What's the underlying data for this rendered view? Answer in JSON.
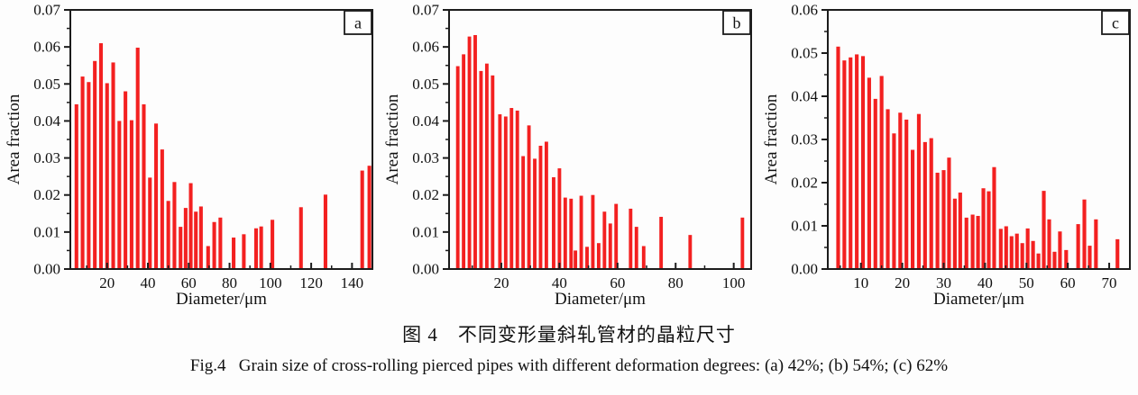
{
  "figure": {
    "caption_cn": "图 4　不同变形量斜轧管材的晶粒尺寸",
    "caption_en": "Fig.4   Grain size of cross-rolling pierced pipes with different deformation degrees: (a) 42%; (b) 54%; (c) 62%"
  },
  "colors": {
    "bar": "#f32020",
    "axis": "#1c1c1c",
    "text": "#111111",
    "panel_box_fill": "#ffffff"
  },
  "chart_data": [
    {
      "type": "bar",
      "panel": "a",
      "xlabel": "Diameter/μm",
      "ylabel": "Area fraction",
      "xlim": [
        2,
        150
      ],
      "ylim": [
        0,
        0.07
      ],
      "xticks": [
        20,
        40,
        60,
        80,
        100,
        120,
        140
      ],
      "yticks": [
        0.0,
        0.01,
        0.02,
        0.03,
        0.04,
        0.05,
        0.06,
        0.07
      ],
      "x_minor_step": 10,
      "y_major_step": 0.01,
      "y_minor_step": 0.005,
      "grid": false,
      "bar_width": 1.8,
      "bars": [
        [
          5,
          0.0445
        ],
        [
          8,
          0.052
        ],
        [
          11,
          0.0505
        ],
        [
          14,
          0.0562
        ],
        [
          17,
          0.061
        ],
        [
          20,
          0.0502
        ],
        [
          23,
          0.0558
        ],
        [
          26,
          0.04
        ],
        [
          29,
          0.048
        ],
        [
          32,
          0.0402
        ],
        [
          35,
          0.0598
        ],
        [
          38,
          0.0445
        ],
        [
          41,
          0.0247
        ],
        [
          44,
          0.0393
        ],
        [
          47,
          0.0323
        ],
        [
          50,
          0.0184
        ],
        [
          53,
          0.0235
        ],
        [
          56,
          0.0114
        ],
        [
          58.5,
          0.0165
        ],
        [
          61,
          0.0232
        ],
        [
          63.5,
          0.0155
        ],
        [
          66,
          0.0169
        ],
        [
          69.5,
          0.0062
        ],
        [
          72.5,
          0.0127
        ],
        [
          75.5,
          0.0139
        ],
        [
          82,
          0.0085
        ],
        [
          87,
          0.0094
        ],
        [
          93,
          0.011
        ],
        [
          95.5,
          0.0115
        ],
        [
          101,
          0.0133
        ],
        [
          115,
          0.0167
        ],
        [
          127,
          0.0201
        ],
        [
          145,
          0.0266
        ],
        [
          148.5,
          0.0279
        ]
      ]
    },
    {
      "type": "bar",
      "panel": "b",
      "xlabel": "Diameter/μm",
      "ylabel": "Area fraction",
      "xlim": [
        2,
        106
      ],
      "ylim": [
        0,
        0.07
      ],
      "xticks": [
        20,
        40,
        60,
        80,
        100
      ],
      "yticks": [
        0.0,
        0.01,
        0.02,
        0.03,
        0.04,
        0.05,
        0.06,
        0.07
      ],
      "x_minor_step": 10,
      "y_major_step": 0.01,
      "y_minor_step": 0.005,
      "grid": false,
      "bar_width": 1.2,
      "bars": [
        [
          5,
          0.0548
        ],
        [
          7,
          0.058
        ],
        [
          9,
          0.0628
        ],
        [
          11,
          0.0632
        ],
        [
          13,
          0.0535
        ],
        [
          15,
          0.0555
        ],
        [
          17,
          0.0523
        ],
        [
          19.5,
          0.0418
        ],
        [
          21.5,
          0.0412
        ],
        [
          23.5,
          0.0435
        ],
        [
          25.5,
          0.0428
        ],
        [
          27.5,
          0.0305
        ],
        [
          29.5,
          0.0388
        ],
        [
          31.5,
          0.0298
        ],
        [
          33.5,
          0.0333
        ],
        [
          35.5,
          0.0344
        ],
        [
          38,
          0.0248
        ],
        [
          40,
          0.0272
        ],
        [
          42,
          0.0193
        ],
        [
          44,
          0.019
        ],
        [
          45.5,
          0.005
        ],
        [
          47.5,
          0.0198
        ],
        [
          49.5,
          0.006
        ],
        [
          51.5,
          0.02
        ],
        [
          53.5,
          0.007
        ],
        [
          55.5,
          0.0155
        ],
        [
          57.5,
          0.0123
        ],
        [
          59.5,
          0.0176
        ],
        [
          64.5,
          0.0163
        ],
        [
          66.5,
          0.0114
        ],
        [
          69,
          0.0062
        ],
        [
          75,
          0.0141
        ],
        [
          85,
          0.0092
        ],
        [
          103,
          0.0139
        ]
      ]
    },
    {
      "type": "bar",
      "panel": "c",
      "xlabel": "Diameter/μm",
      "ylabel": "Area fraction",
      "xlim": [
        2,
        75
      ],
      "ylim": [
        0,
        0.06
      ],
      "xticks": [
        10,
        20,
        30,
        40,
        50,
        60,
        70
      ],
      "yticks": [
        0.0,
        0.01,
        0.02,
        0.03,
        0.04,
        0.05,
        0.06
      ],
      "x_minor_step": 5,
      "y_major_step": 0.01,
      "y_minor_step": 0.005,
      "grid": false,
      "bar_width": 0.9,
      "bars": [
        [
          4.5,
          0.0515
        ],
        [
          6,
          0.0483
        ],
        [
          7.5,
          0.049
        ],
        [
          9,
          0.0497
        ],
        [
          10.5,
          0.0493
        ],
        [
          12,
          0.0443
        ],
        [
          13.5,
          0.0394
        ],
        [
          15,
          0.0447
        ],
        [
          16.5,
          0.037
        ],
        [
          18,
          0.0314
        ],
        [
          19.5,
          0.0362
        ],
        [
          21,
          0.0346
        ],
        [
          22.5,
          0.0276
        ],
        [
          24,
          0.0359
        ],
        [
          25.5,
          0.0294
        ],
        [
          27,
          0.0303
        ],
        [
          28.5,
          0.0223
        ],
        [
          30,
          0.0229
        ],
        [
          31.3,
          0.0258
        ],
        [
          32.7,
          0.0163
        ],
        [
          34,
          0.0177
        ],
        [
          35.5,
          0.0119
        ],
        [
          37,
          0.0126
        ],
        [
          38.3,
          0.0123
        ],
        [
          39.6,
          0.0187
        ],
        [
          40.9,
          0.018
        ],
        [
          42.2,
          0.0236
        ],
        [
          43.8,
          0.0093
        ],
        [
          45.1,
          0.0099
        ],
        [
          46.4,
          0.0076
        ],
        [
          47.7,
          0.0082
        ],
        [
          49,
          0.006
        ],
        [
          50.3,
          0.0094
        ],
        [
          51.6,
          0.0065
        ],
        [
          52.9,
          0.0036
        ],
        [
          54.2,
          0.0181
        ],
        [
          55.5,
          0.0115
        ],
        [
          56.8,
          0.004
        ],
        [
          58.1,
          0.0087
        ],
        [
          59.6,
          0.0044
        ],
        [
          62.5,
          0.0104
        ],
        [
          64,
          0.0161
        ],
        [
          65.3,
          0.0054
        ],
        [
          66.8,
          0.0115
        ],
        [
          72,
          0.0069
        ]
      ]
    }
  ]
}
